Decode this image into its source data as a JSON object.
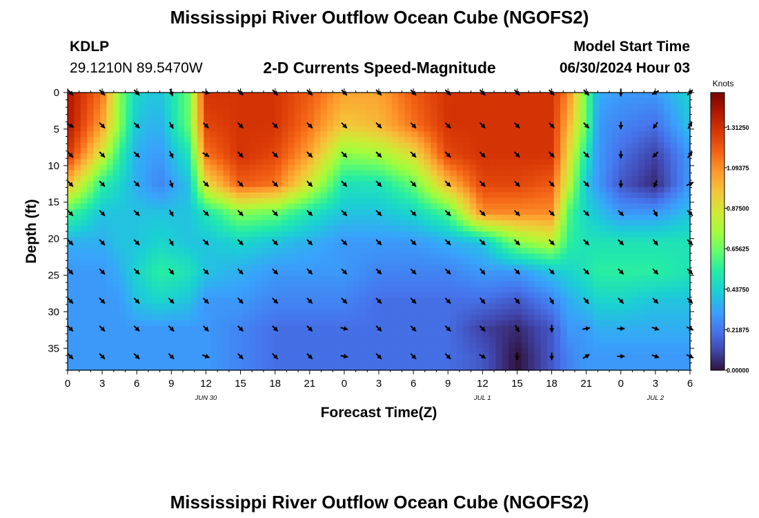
{
  "header": {
    "title": "Mississippi River Outflow Ocean Cube (NGOFS2)",
    "station_id": "KDLP",
    "coordinates": "29.1210N  89.5470W",
    "subtitle": "2-D Currents Speed-Magnitude",
    "model_start_label": "Model Start Time",
    "model_start_value": "06/30/2024 Hour 03"
  },
  "footer": {
    "title": "Mississippi River Outflow Ocean Cube (NGOFS2)"
  },
  "chart_data": {
    "type": "heatmap",
    "xlabel": "Forecast Time(Z)",
    "ylabel": "Depth (ft)",
    "x_ticks": [
      "0",
      "3",
      "6",
      "9",
      "12",
      "15",
      "18",
      "21",
      "0",
      "3",
      "6",
      "9",
      "12",
      "15",
      "18",
      "21",
      "0",
      "3",
      "6"
    ],
    "x_hours": [
      0,
      3,
      6,
      9,
      12,
      15,
      18,
      21,
      24,
      27,
      30,
      33,
      36,
      39,
      42,
      45,
      48,
      51,
      54
    ],
    "date_labels": [
      {
        "label": "JUN 30",
        "hour": 12
      },
      {
        "label": "JUL 1",
        "hour": 36
      },
      {
        "label": "JUL 2",
        "hour": 51
      }
    ],
    "xlim": [
      0,
      54
    ],
    "y_ticks": [
      0,
      5,
      10,
      15,
      20,
      25,
      30,
      35
    ],
    "ylim": [
      0,
      38
    ],
    "y_inverted": true,
    "colorbar": {
      "title": "Knots",
      "ticks": [
        "1.31250",
        "1.09375",
        "0.87500",
        "0.65625",
        "0.43750",
        "0.21875",
        "0.00000"
      ],
      "tick_values": [
        1.3125,
        1.09375,
        0.875,
        0.65625,
        0.4375,
        0.21875,
        0
      ],
      "range": [
        0,
        1.5
      ],
      "colormap": [
        "#30123b",
        "#4145ab",
        "#4675ed",
        "#39a2fc",
        "#1bcfd4",
        "#24eca6",
        "#61fc6c",
        "#a4fc3b",
        "#d1e834",
        "#f3c63a",
        "#fe9b2d",
        "#f36315",
        "#d93806",
        "#b11901",
        "#7a0402"
      ]
    },
    "arrow_depths": [
      0,
      4.5,
      8.5,
      12.5,
      16.5,
      20.5,
      24.5,
      28.5,
      32.3,
      36.1
    ],
    "speed_keypoints": [
      {
        "hour": 0,
        "speeds": [
          1.4,
          1.4,
          1.3,
          1.0,
          0.6,
          0.35,
          0.3,
          0.3,
          0.3,
          0.3
        ]
      },
      {
        "hour": 3,
        "speeds": [
          1.15,
          1.05,
          0.85,
          0.55,
          0.4,
          0.35,
          0.3,
          0.3,
          0.3,
          0.3
        ]
      },
      {
        "hour": 4.5,
        "speeds": [
          0.7,
          0.7,
          0.55,
          0.45,
          0.4,
          0.4,
          0.35,
          0.3,
          0.3,
          0.3
        ]
      },
      {
        "hour": 6,
        "speeds": [
          0.45,
          0.4,
          0.35,
          0.35,
          0.4,
          0.4,
          0.45,
          0.4,
          0.3,
          0.3
        ]
      },
      {
        "hour": 8,
        "speeds": [
          0.4,
          0.35,
          0.3,
          0.25,
          0.4,
          0.45,
          0.55,
          0.45,
          0.3,
          0.3
        ]
      },
      {
        "hour": 10.5,
        "speeds": [
          0.65,
          0.65,
          0.5,
          0.4,
          0.4,
          0.4,
          0.5,
          0.4,
          0.3,
          0.3
        ]
      },
      {
        "hour": 12,
        "speeds": [
          1.3,
          1.25,
          1.15,
          0.9,
          0.5,
          0.4,
          0.4,
          0.3,
          0.3,
          0.3
        ]
      },
      {
        "hour": 15,
        "speeds": [
          1.3,
          1.3,
          1.3,
          1.2,
          0.7,
          0.45,
          0.35,
          0.3,
          0.25,
          0.25
        ]
      },
      {
        "hour": 18,
        "speeds": [
          1.3,
          1.3,
          1.25,
          1.15,
          0.65,
          0.4,
          0.3,
          0.25,
          0.2,
          0.2
        ]
      },
      {
        "hour": 21,
        "speeds": [
          1.2,
          1.15,
          1.05,
          0.85,
          0.5,
          0.35,
          0.3,
          0.25,
          0.2,
          0.2
        ]
      },
      {
        "hour": 24,
        "speeds": [
          1.05,
          0.95,
          0.7,
          0.5,
          0.4,
          0.3,
          0.3,
          0.25,
          0.2,
          0.2
        ]
      },
      {
        "hour": 27,
        "speeds": [
          1.05,
          1.0,
          0.75,
          0.5,
          0.4,
          0.3,
          0.25,
          0.2,
          0.2,
          0.2
        ]
      },
      {
        "hour": 30,
        "speeds": [
          1.2,
          1.15,
          0.9,
          0.65,
          0.45,
          0.3,
          0.25,
          0.2,
          0.2,
          0.2
        ]
      },
      {
        "hour": 33,
        "speeds": [
          1.3,
          1.3,
          1.25,
          1.0,
          0.6,
          0.35,
          0.25,
          0.2,
          0.2,
          0.2
        ]
      },
      {
        "hour": 36,
        "speeds": [
          1.3,
          1.3,
          1.3,
          1.25,
          1.1,
          0.4,
          0.3,
          0.2,
          0.1,
          0.15
        ]
      },
      {
        "hour": 39,
        "speeds": [
          1.3,
          1.3,
          1.3,
          1.25,
          1.1,
          0.7,
          0.3,
          0.15,
          0.05,
          0.0
        ]
      },
      {
        "hour": 42,
        "speeds": [
          1.3,
          1.3,
          1.3,
          1.2,
          1.1,
          0.8,
          0.4,
          0.25,
          0.15,
          0.15
        ]
      },
      {
        "hour": 43.5,
        "speeds": [
          1.1,
          1.0,
          0.9,
          0.8,
          0.6,
          0.55,
          0.45,
          0.35,
          0.3,
          0.25
        ]
      },
      {
        "hour": 45,
        "speeds": [
          0.65,
          0.65,
          0.5,
          0.4,
          0.45,
          0.5,
          0.5,
          0.4,
          0.3,
          0.3
        ]
      },
      {
        "hour": 46,
        "speeds": [
          0.35,
          0.3,
          0.3,
          0.3,
          0.4,
          0.5,
          0.55,
          0.45,
          0.35,
          0.3
        ]
      },
      {
        "hour": 48,
        "speeds": [
          0.3,
          0.25,
          0.2,
          0.15,
          0.3,
          0.5,
          0.55,
          0.45,
          0.35,
          0.3
        ]
      },
      {
        "hour": 51,
        "speeds": [
          0.3,
          0.2,
          0.1,
          0.05,
          0.3,
          0.5,
          0.55,
          0.4,
          0.35,
          0.3
        ]
      },
      {
        "hour": 54,
        "speeds": [
          0.45,
          0.4,
          0.3,
          0.3,
          0.4,
          0.5,
          0.5,
          0.4,
          0.35,
          0.3
        ]
      }
    ],
    "arrow_directions_deg": [
      [
        135,
        120,
        135,
        135,
        135,
        135,
        135,
        135,
        135,
        135
      ],
      [
        135,
        135,
        135,
        135,
        135,
        135,
        135,
        135,
        135,
        135
      ],
      [
        135,
        135,
        135,
        135,
        135,
        135,
        135,
        135,
        135,
        135
      ],
      [
        160,
        150,
        155,
        160,
        150,
        150,
        140,
        135,
        135,
        135
      ],
      [
        100,
        135,
        120,
        135,
        135,
        135,
        135,
        135,
        135,
        110
      ],
      [
        135,
        135,
        135,
        135,
        135,
        135,
        135,
        135,
        135,
        135
      ],
      [
        135,
        135,
        135,
        135,
        135,
        135,
        135,
        135,
        135,
        135
      ],
      [
        135,
        135,
        135,
        135,
        135,
        135,
        135,
        135,
        135,
        135
      ],
      [
        135,
        135,
        135,
        135,
        135,
        135,
        135,
        135,
        105,
        100
      ],
      [
        135,
        135,
        135,
        135,
        135,
        135,
        135,
        135,
        135,
        135
      ],
      [
        135,
        135,
        135,
        135,
        135,
        135,
        135,
        135,
        135,
        135
      ],
      [
        135,
        135,
        135,
        135,
        135,
        135,
        135,
        135,
        135,
        135
      ],
      [
        135,
        135,
        135,
        135,
        135,
        135,
        140,
        140,
        135,
        120
      ],
      [
        135,
        135,
        135,
        135,
        135,
        135,
        135,
        140,
        150,
        180
      ],
      [
        135,
        135,
        135,
        135,
        135,
        135,
        135,
        150,
        180,
        180
      ],
      [
        135,
        135,
        135,
        135,
        135,
        135,
        135,
        140,
        80,
        60
      ],
      [
        180,
        180,
        180,
        180,
        135,
        135,
        135,
        135,
        90,
        90
      ],
      [
        240,
        215,
        225,
        200,
        150,
        140,
        135,
        135,
        110,
        110
      ],
      [
        45,
        30,
        35,
        65,
        135,
        135,
        135,
        135,
        115,
        115
      ]
    ]
  }
}
